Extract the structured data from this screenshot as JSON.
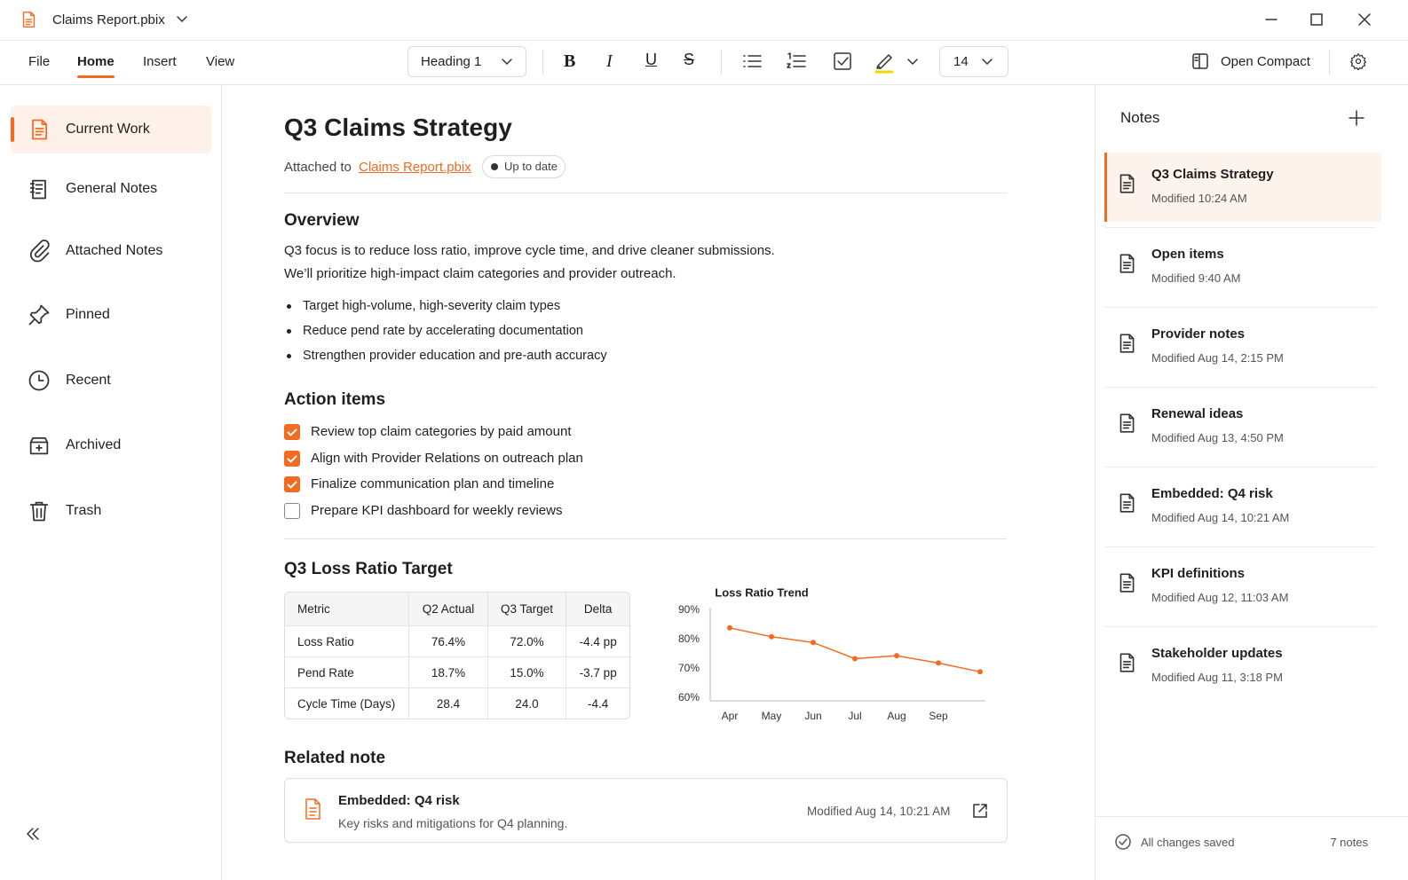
{
  "window": {
    "title": "Claims Report.pbix"
  },
  "menu": [
    "File",
    "Home",
    "Insert",
    "View"
  ],
  "toolbar": {
    "style": "Heading 1",
    "font_size": 14,
    "open_compact": "Open Compact"
  },
  "sidebar": [
    "Current Work",
    "General Notes",
    "Attached Notes",
    "Pinned",
    "Recent",
    "Archived",
    "Trash"
  ],
  "doc": {
    "title": "Q3 Claims Strategy",
    "attached_prefix": "Attached to",
    "attached_file": "Claims Report.pbix",
    "status": "Up to date",
    "overview": {
      "heading": "Overview",
      "paragraphs": [
        "Q3 focus is to reduce loss ratio, improve cycle time, and drive cleaner submissions.",
        "We’ll prioritize high-impact claim categories and provider outreach."
      ],
      "bullets": [
        "Target high-volume, high-severity claim types",
        "Reduce pend rate by accelerating documentation",
        "Strengthen provider education and pre-auth accuracy"
      ]
    },
    "actions": {
      "heading": "Action items",
      "items": [
        {
          "text": "Review top claim categories by paid amount",
          "done": true
        },
        {
          "text": "Align with Provider Relations on outreach plan",
          "done": true
        },
        {
          "text": "Finalize communication plan and timeline",
          "done": true
        },
        {
          "text": "Prepare KPI dashboard for weekly reviews",
          "done": false
        }
      ]
    },
    "loss": {
      "heading": "Q3 Loss Ratio Target",
      "table": {
        "columns": [
          "Metric",
          "Q2 Actual",
          "Q3 Target",
          "Delta"
        ],
        "rows": [
          [
            "Loss Ratio",
            "76.4%",
            "72.0%",
            "-4.4 pp"
          ],
          [
            "Pend Rate",
            "18.7%",
            "15.0%",
            "-3.7 pp"
          ],
          [
            "Cycle Time (Days)",
            "28.4",
            "24.0",
            "-4.4"
          ]
        ]
      }
    },
    "related": {
      "heading": "Related note",
      "title": "Embedded: Q4 risk",
      "description": "Key risks and mitigations for Q4 planning.",
      "modified": "Modified Aug 14, 10:21 AM"
    }
  },
  "chart_data": {
    "type": "line",
    "title": "Loss Ratio Trend",
    "categories": [
      "Apr",
      "May",
      "Jun",
      "Jul",
      "Aug",
      "Sep",
      null
    ],
    "values": [
      84,
      81,
      79,
      73.5,
      74.5,
      72,
      69
    ],
    "color": "#f26b21",
    "ylim": [
      60,
      90
    ],
    "yticks": [
      {
        "value": 60,
        "label": "60%"
      },
      {
        "value": 70,
        "label": "70%"
      },
      {
        "value": 80,
        "label": "80%"
      },
      {
        "value": 90,
        "label": "90%"
      }
    ],
    "grid": false
  },
  "notes_panel": {
    "title": "Notes",
    "items": [
      {
        "title": "Q3 Claims Strategy",
        "modified": "Modified 10:24 AM"
      },
      {
        "title": "Open items",
        "modified": "Modified 9:40 AM"
      },
      {
        "title": "Provider notes",
        "modified": "Modified Aug 14, 2:15 PM"
      },
      {
        "title": "Renewal ideas",
        "modified": "Modified Aug 13, 4:50 PM"
      },
      {
        "title": "Embedded: Q4 risk",
        "modified": "Modified Aug 14, 10:21 AM"
      },
      {
        "title": "KPI definitions",
        "modified": "Modified Aug 12, 11:03 AM"
      },
      {
        "title": "Stakeholder updates",
        "modified": "Modified Aug 11, 3:18 PM"
      }
    ],
    "status": "All changes saved",
    "count": "7 notes"
  }
}
